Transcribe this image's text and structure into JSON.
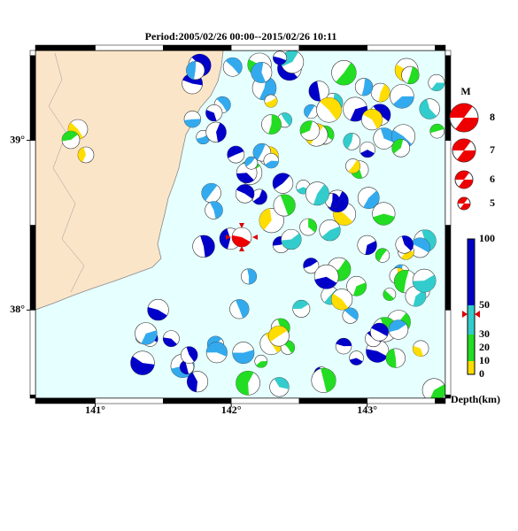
{
  "map": {
    "title": "Period:2005/02/26 00:00--2015/02/26 10:11",
    "xlim": [
      140.56,
      143.575
    ],
    "ylim": [
      37.48,
      39.53
    ],
    "xticks": [
      {
        "value": 141,
        "label": "141°"
      },
      {
        "value": 142,
        "label": "142°"
      },
      {
        "value": 143,
        "label": "143°"
      }
    ],
    "yticks": [
      {
        "value": 38,
        "label": "38°"
      },
      {
        "value": 39,
        "label": "39°"
      }
    ],
    "magnitude_legend": {
      "title": "M",
      "labels": [
        "8",
        "7",
        "6",
        "5"
      ]
    },
    "depth_legend": {
      "title": "Depth(km)",
      "labels": [
        "100",
        "50",
        "30",
        "20",
        "10",
        "0"
      ]
    }
  }
}
